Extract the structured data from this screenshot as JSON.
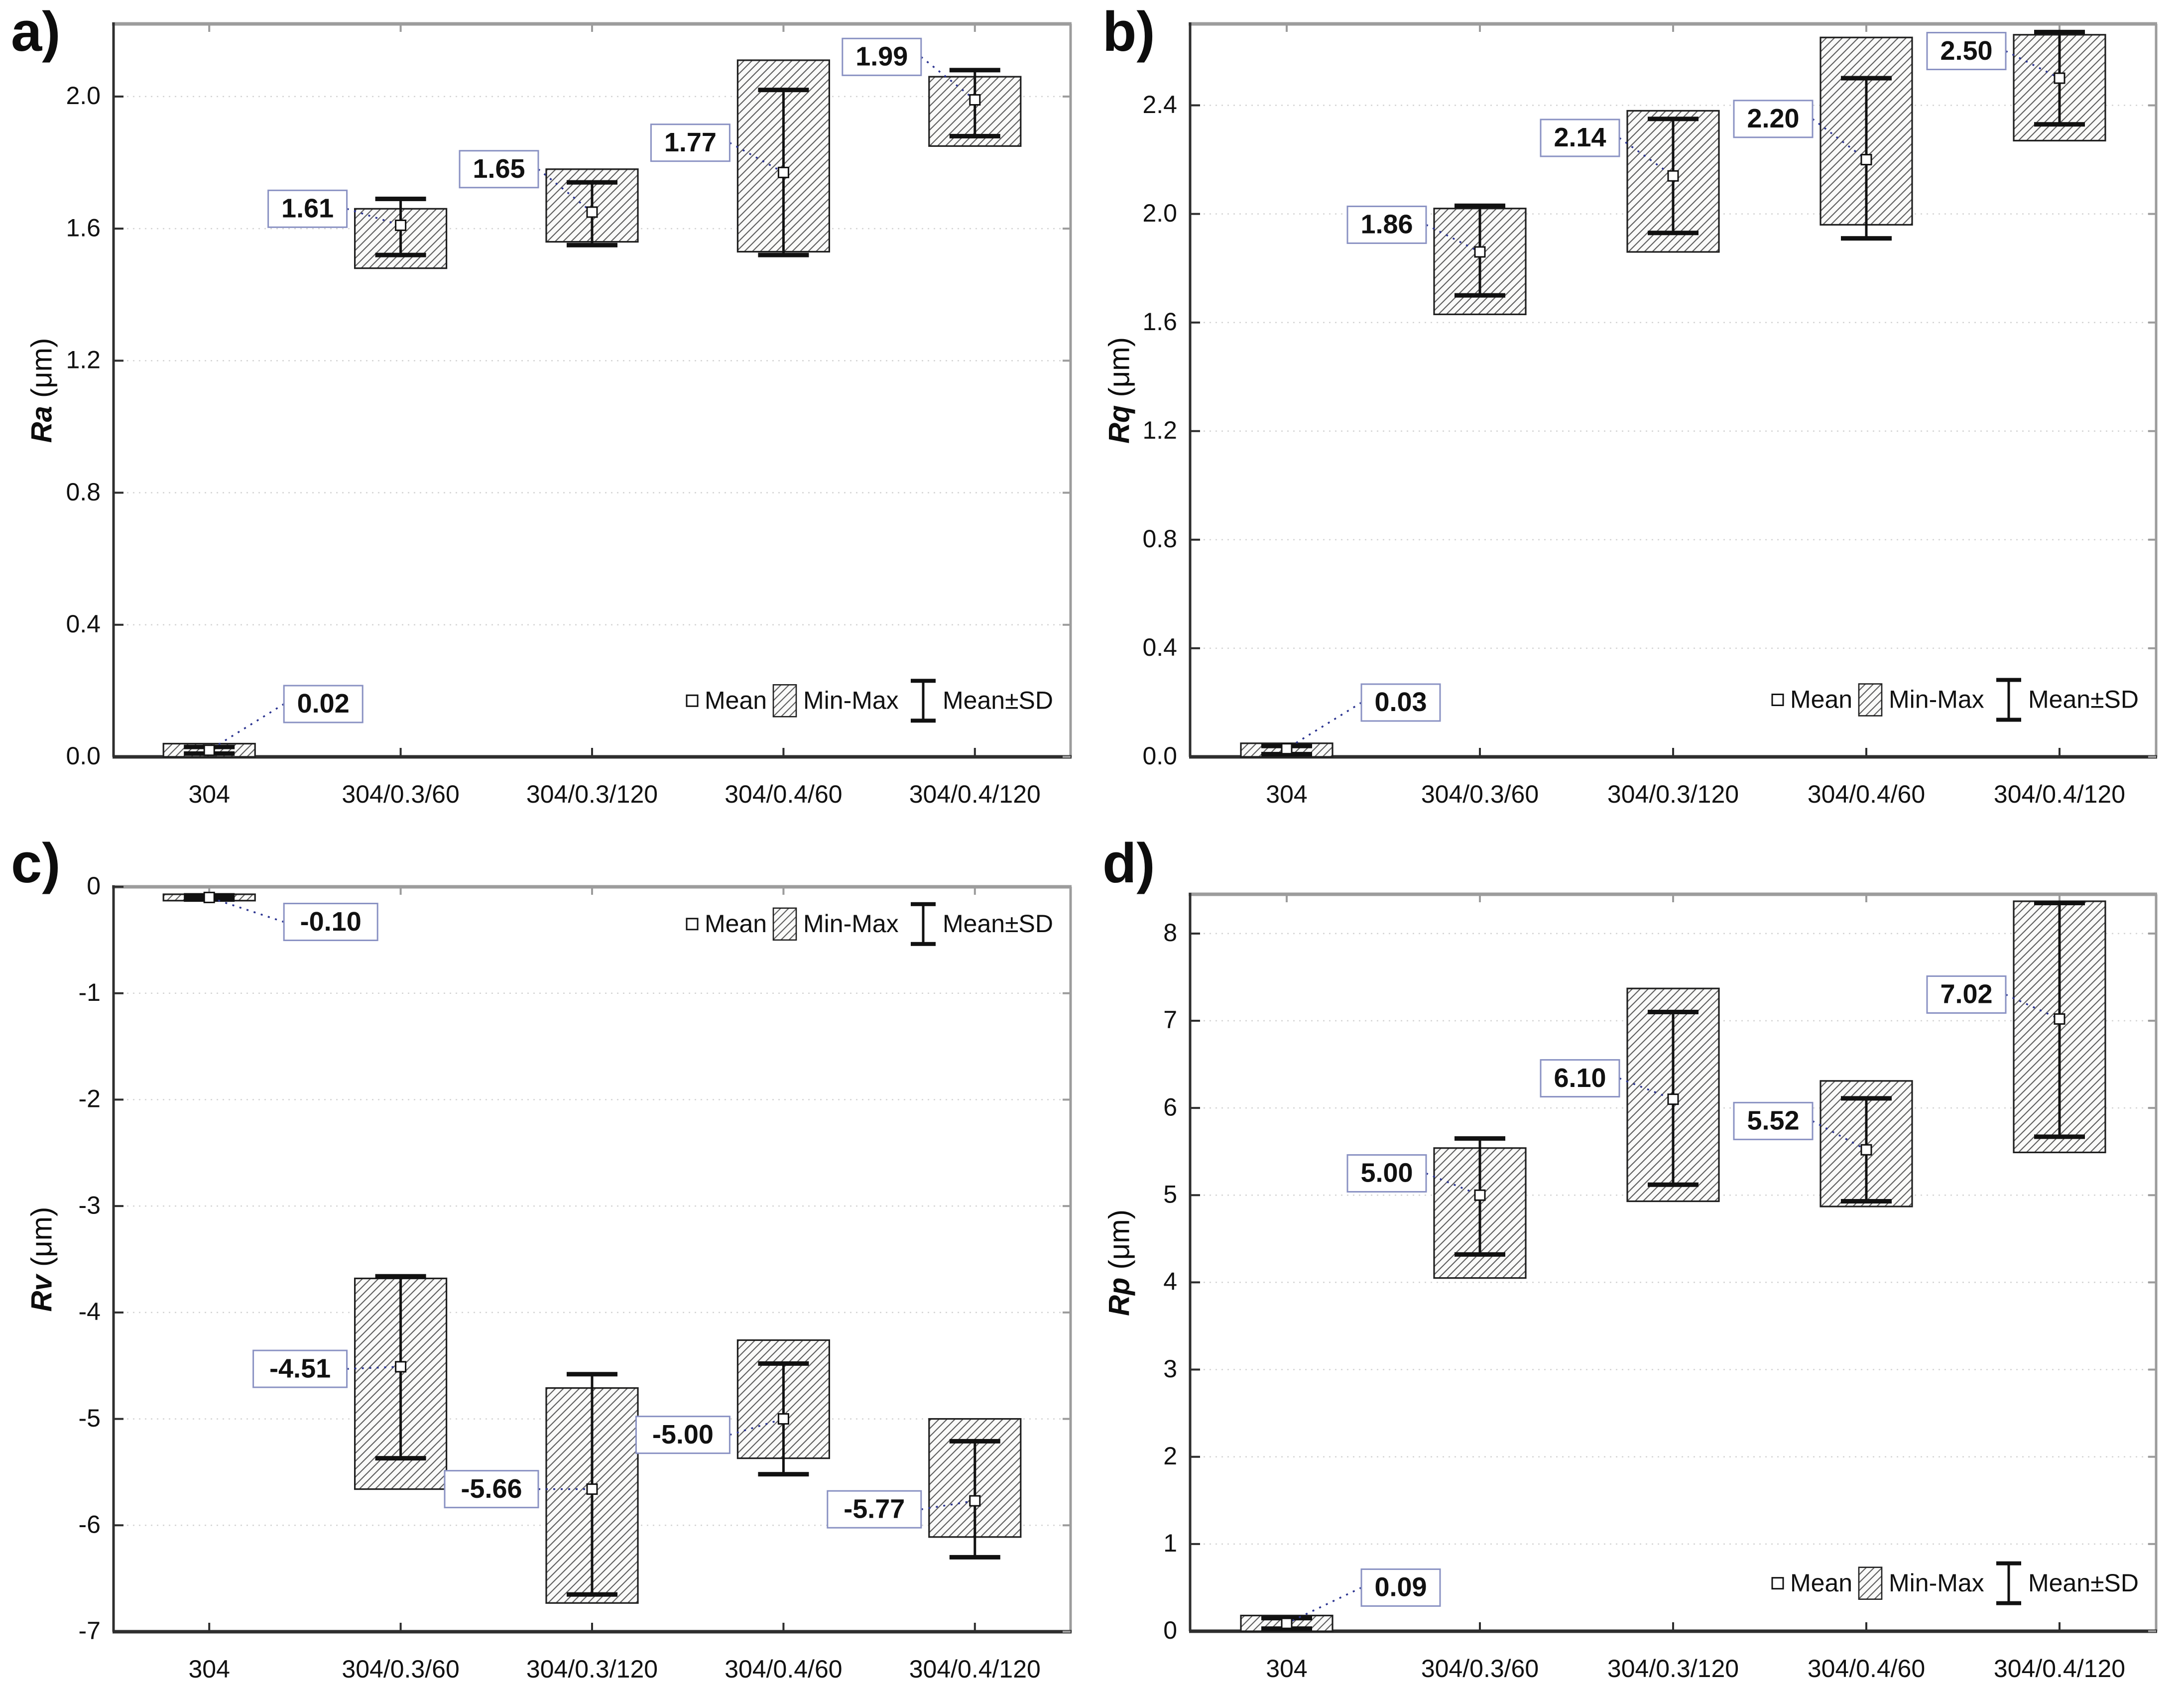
{
  "style": {
    "background": "#ffffff",
    "text_color": "#111111",
    "grid_color": "#d4d4d4",
    "frame_light": "#9c9c9c",
    "axis_dark": "#2e2e2e",
    "box_border": "#1f1f1f",
    "hatch_line": "#606060",
    "hatch_fill": "#fafaf9",
    "whisker_color": "#111111",
    "mean_fill": "#ffffff",
    "label_border": "#8a92c3",
    "leader_color": "#2b3490"
  },
  "legend": {
    "mean": "Mean",
    "minmax": "Min-Max",
    "meansd": "Mean±SD"
  },
  "categories": [
    "304",
    "304/0.3/60",
    "304/0.3/120",
    "304/0.4/60",
    "304/0.4/120"
  ],
  "chart_data": [
    {
      "type": "box",
      "panel_label": "a)",
      "ylabel_symbol": "Ra",
      "ylabel_unit": "(μm)",
      "ylim": [
        0,
        2.22
      ],
      "yticks": [
        [
          "0.0",
          0.0
        ],
        [
          "0.4",
          0.4
        ],
        [
          "0.8",
          0.8
        ],
        [
          "1.2",
          1.2
        ],
        [
          "1.6",
          1.6
        ],
        [
          "2.0",
          2.0
        ]
      ],
      "categories": [
        "304",
        "304/0.3/60",
        "304/0.3/120",
        "304/0.4/60",
        "304/0.4/120"
      ],
      "legend_pos": "bottom-right",
      "legend_y": 0.17,
      "groups": [
        {
          "category": "304",
          "mean": 0.02,
          "label": "0.02",
          "box": [
            0.0,
            0.04
          ],
          "whisker": [
            0.01,
            0.03
          ],
          "label_side": "right",
          "label_y": 0.16
        },
        {
          "category": "304/0.3/60",
          "mean": 1.61,
          "label": "1.61",
          "box": [
            1.48,
            1.66
          ],
          "whisker": [
            1.52,
            1.69
          ],
          "label_side": "left",
          "label_y": 1.66
        },
        {
          "category": "304/0.3/120",
          "mean": 1.65,
          "label": "1.65",
          "box": [
            1.56,
            1.78
          ],
          "whisker": [
            1.55,
            1.74
          ],
          "label_side": "left",
          "label_y": 1.78
        },
        {
          "category": "304/0.4/60",
          "mean": 1.77,
          "label": "1.77",
          "box": [
            1.53,
            2.11
          ],
          "whisker": [
            1.52,
            2.02
          ],
          "label_side": "left",
          "label_y": 1.86
        },
        {
          "category": "304/0.4/120",
          "mean": 1.99,
          "label": "1.99",
          "box": [
            1.85,
            2.06
          ],
          "whisker": [
            1.88,
            2.08
          ],
          "label_side": "left",
          "label_y": 2.12
        }
      ]
    },
    {
      "type": "box",
      "panel_label": "b)",
      "ylabel_symbol": "Rq",
      "ylabel_unit": "(μm)",
      "ylim": [
        0,
        2.7
      ],
      "yticks": [
        [
          "0.0",
          0.0
        ],
        [
          "0.4",
          0.4
        ],
        [
          "0.8",
          0.8
        ],
        [
          "1.2",
          1.2
        ],
        [
          "1.6",
          1.6
        ],
        [
          "2.0",
          2.0
        ],
        [
          "2.4",
          2.4
        ]
      ],
      "categories": [
        "304",
        "304/0.3/60",
        "304/0.3/120",
        "304/0.4/60",
        "304/0.4/120"
      ],
      "legend_pos": "bottom-right",
      "legend_y": 0.21,
      "groups": [
        {
          "category": "304",
          "mean": 0.03,
          "label": "0.03",
          "box": [
            0.0,
            0.05
          ],
          "whisker": [
            0.01,
            0.04
          ],
          "label_side": "right",
          "label_y": 0.2
        },
        {
          "category": "304/0.3/60",
          "mean": 1.86,
          "label": "1.86",
          "box": [
            1.63,
            2.02
          ],
          "whisker": [
            1.7,
            2.03
          ],
          "label_side": "left",
          "label_y": 1.96
        },
        {
          "category": "304/0.3/120",
          "mean": 2.14,
          "label": "2.14",
          "box": [
            1.86,
            2.38
          ],
          "whisker": [
            1.93,
            2.35
          ],
          "label_side": "left",
          "label_y": 2.28
        },
        {
          "category": "304/0.4/60",
          "mean": 2.2,
          "label": "2.20",
          "box": [
            1.96,
            2.65
          ],
          "whisker": [
            1.91,
            2.5
          ],
          "label_side": "left",
          "label_y": 2.35
        },
        {
          "category": "304/0.4/120",
          "mean": 2.5,
          "label": "2.50",
          "box": [
            2.27,
            2.66
          ],
          "whisker": [
            2.33,
            2.67
          ],
          "label_side": "left",
          "label_y": 2.6
        }
      ]
    },
    {
      "type": "box",
      "panel_label": "c)",
      "ylabel_symbol": "Rv",
      "ylabel_unit": "(μm)",
      "ylim": [
        -7,
        0
      ],
      "yticks": [
        [
          "0",
          0
        ],
        [
          "-1",
          -1
        ],
        [
          "-2",
          -2
        ],
        [
          "-3",
          -3
        ],
        [
          "-4",
          -4
        ],
        [
          "-5",
          -5
        ],
        [
          "-6",
          -6
        ],
        [
          "-7",
          -7
        ]
      ],
      "categories": [
        "304",
        "304/0.3/60",
        "304/0.3/120",
        "304/0.4/60",
        "304/0.4/120"
      ],
      "legend_pos": "top-right",
      "legend_y": -0.35,
      "groups": [
        {
          "category": "304",
          "mean": -0.1,
          "label": "-0.10",
          "box": [
            -0.13,
            -0.07
          ],
          "whisker": [
            -0.12,
            -0.08
          ],
          "label_side": "right",
          "label_y": -0.33
        },
        {
          "category": "304/0.3/60",
          "mean": -4.51,
          "label": "-4.51",
          "box": [
            -5.66,
            -3.68
          ],
          "whisker": [
            -5.37,
            -3.66
          ],
          "label_side": "left",
          "label_y": -4.53
        },
        {
          "category": "304/0.3/120",
          "mean": -5.66,
          "label": "-5.66",
          "box": [
            -6.73,
            -4.71
          ],
          "whisker": [
            -6.65,
            -4.58
          ],
          "label_side": "left",
          "label_y": -5.66
        },
        {
          "category": "304/0.4/60",
          "mean": -5.0,
          "label": "-5.00",
          "box": [
            -5.37,
            -4.26
          ],
          "whisker": [
            -5.52,
            -4.48
          ],
          "label_side": "left",
          "label_y": -5.15
        },
        {
          "category": "304/0.4/120",
          "mean": -5.77,
          "label": "-5.77",
          "box": [
            -6.11,
            -5.0
          ],
          "whisker": [
            -6.3,
            -5.21
          ],
          "label_side": "left",
          "label_y": -5.85
        }
      ]
    },
    {
      "type": "box",
      "panel_label": "d)",
      "ylabel_symbol": "Rp",
      "ylabel_unit": "(μm)",
      "ylim": [
        0,
        8.45
      ],
      "yticks": [
        [
          "0",
          0
        ],
        [
          "1",
          1
        ],
        [
          "2",
          2
        ],
        [
          "3",
          3
        ],
        [
          "4",
          4
        ],
        [
          "5",
          5
        ],
        [
          "6",
          6
        ],
        [
          "7",
          7
        ],
        [
          "8",
          8
        ]
      ],
      "categories": [
        "304",
        "304/0.3/60",
        "304/0.3/120",
        "304/0.4/60",
        "304/0.4/120"
      ],
      "legend_pos": "bottom-right",
      "legend_y": 0.55,
      "groups": [
        {
          "category": "304",
          "mean": 0.09,
          "label": "0.09",
          "box": [
            0.0,
            0.18
          ],
          "whisker": [
            0.03,
            0.15
          ],
          "label_side": "right",
          "label_y": 0.5
        },
        {
          "category": "304/0.3/60",
          "mean": 5.0,
          "label": "5.00",
          "box": [
            4.05,
            5.54
          ],
          "whisker": [
            4.32,
            5.65
          ],
          "label_side": "left",
          "label_y": 5.25
        },
        {
          "category": "304/0.3/120",
          "mean": 6.1,
          "label": "6.10",
          "box": [
            4.93,
            7.37
          ],
          "whisker": [
            5.12,
            7.1
          ],
          "label_side": "left",
          "label_y": 6.34
        },
        {
          "category": "304/0.4/60",
          "mean": 5.52,
          "label": "5.52",
          "box": [
            4.87,
            6.31
          ],
          "whisker": [
            4.93,
            6.11
          ],
          "label_side": "left",
          "label_y": 5.85
        },
        {
          "category": "304/0.4/120",
          "mean": 7.02,
          "label": "7.02",
          "box": [
            5.49,
            8.37
          ],
          "whisker": [
            5.67,
            8.35
          ],
          "label_side": "left",
          "label_y": 7.3
        }
      ]
    }
  ]
}
